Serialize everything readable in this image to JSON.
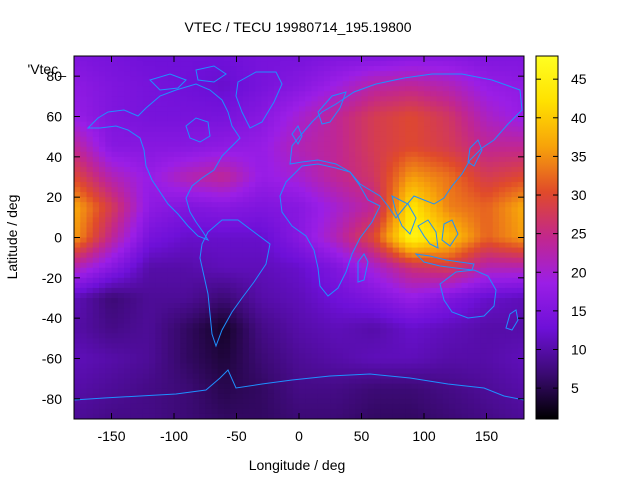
{
  "chart_data": {
    "type": "heatmap",
    "title": "VTEC / TECU 19980714_195.19800",
    "xlabel": "Longitude / deg",
    "ylabel": "Latitude / deg",
    "key_label": "'Vtec_",
    "xlim": [
      -180,
      180
    ],
    "ylim": [
      -90,
      90
    ],
    "x_ticks": [
      -150,
      -100,
      -50,
      0,
      50,
      100,
      150
    ],
    "y_ticks": [
      -80,
      -60,
      -40,
      -20,
      0,
      20,
      40,
      60,
      80
    ],
    "colorbar": {
      "range": [
        1,
        48
      ],
      "ticks": [
        5,
        10,
        15,
        20,
        25,
        30,
        35,
        40,
        45
      ],
      "palette": [
        "#000000",
        "#3b0a73",
        "#6e10d8",
        "#9b1ee6",
        "#c2278d",
        "#e04a2a",
        "#f7a20a",
        "#ffe100",
        "#ffff22"
      ]
    },
    "coastline_color": "#1e90ff",
    "lon": [
      -180,
      -150,
      -120,
      -90,
      -60,
      -30,
      0,
      30,
      60,
      90,
      120,
      150,
      180
    ],
    "lat": [
      90,
      75,
      60,
      45,
      30,
      15,
      0,
      -15,
      -30,
      -45,
      -60,
      -75,
      -90
    ],
    "vtec": [
      [
        15,
        14,
        13,
        13,
        13,
        14,
        14,
        15,
        15,
        16,
        16,
        15,
        15
      ],
      [
        17,
        15,
        14,
        13,
        12,
        14,
        16,
        19,
        23,
        24,
        22,
        18,
        17
      ],
      [
        18,
        15,
        14,
        14,
        14,
        16,
        20,
        24,
        28,
        30,
        27,
        21,
        18
      ],
      [
        24,
        16,
        16,
        16,
        17,
        18,
        22,
        24,
        28,
        30,
        28,
        24,
        24
      ],
      [
        30,
        22,
        18,
        22,
        24,
        18,
        20,
        24,
        27,
        36,
        33,
        28,
        30
      ],
      [
        37,
        28,
        17,
        15,
        16,
        15,
        16,
        20,
        24,
        43,
        34,
        32,
        37
      ],
      [
        36,
        24,
        14,
        12,
        12,
        12,
        16,
        22,
        30,
        46,
        40,
        32,
        36
      ],
      [
        22,
        16,
        10,
        10,
        11,
        11,
        12,
        15,
        20,
        26,
        28,
        22,
        22
      ],
      [
        11,
        7,
        9,
        9,
        7,
        10,
        11,
        13,
        15,
        18,
        15,
        12,
        11
      ],
      [
        10,
        8,
        9,
        6,
        3,
        8,
        10,
        11,
        10,
        12,
        11,
        10,
        10
      ],
      [
        11,
        10,
        9,
        6,
        4,
        7,
        9,
        10,
        11,
        11,
        10,
        10,
        11
      ],
      [
        10,
        9,
        8,
        7,
        5,
        6,
        8,
        8,
        7,
        7,
        8,
        9,
        10
      ],
      [
        9,
        8,
        8,
        7,
        6,
        6,
        7,
        7,
        6,
        6,
        7,
        8,
        9
      ]
    ]
  }
}
